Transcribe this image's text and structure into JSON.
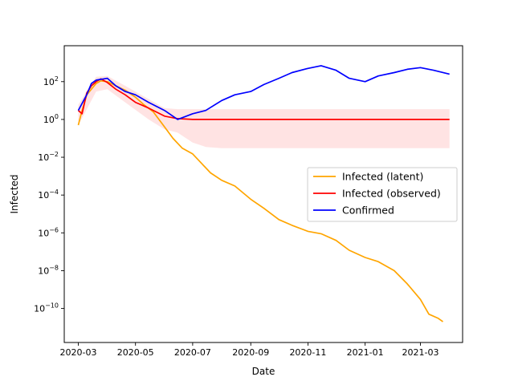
{
  "chart_data": {
    "type": "line",
    "title": "",
    "xlabel": "Date",
    "ylabel": "Infected",
    "yscale": "log",
    "xlim": [
      "2020-02-15",
      "2021-04-15"
    ],
    "ylim_exponent": [
      -11.8,
      3.9
    ],
    "x_ticks": [
      "2020-03",
      "2020-05",
      "2020-07",
      "2020-09",
      "2020-11",
      "2021-01",
      "2021-03"
    ],
    "y_ticks_exponent": [
      2,
      0,
      -2,
      -4,
      -6,
      -8,
      -10
    ],
    "grid": false,
    "legend": {
      "position": "center-right",
      "entries": [
        "Infected (latent)",
        "Infected (observed)",
        "Confirmed"
      ]
    },
    "colors": {
      "latent": "#ffa500",
      "observed": "#ff0000",
      "confirmed": "#0000ff",
      "band": "#ffe0e0"
    },
    "series": [
      {
        "name": "Infected (latent)",
        "color": "#ffa500",
        "points": [
          [
            "2020-03-01",
            0.5
          ],
          [
            "2020-03-05",
            3
          ],
          [
            "2020-03-10",
            20
          ],
          [
            "2020-03-15",
            40
          ],
          [
            "2020-03-20",
            80
          ],
          [
            "2020-03-25",
            110
          ],
          [
            "2020-04-01",
            100
          ],
          [
            "2020-04-10",
            60
          ],
          [
            "2020-04-20",
            35
          ],
          [
            "2020-05-01",
            15
          ],
          [
            "2020-05-10",
            6
          ],
          [
            "2020-05-20",
            2.5
          ],
          [
            "2020-06-01",
            0.4
          ],
          [
            "2020-06-10",
            0.1
          ],
          [
            "2020-06-20",
            0.03
          ],
          [
            "2020-07-01",
            0.015
          ],
          [
            "2020-07-10",
            0.005
          ],
          [
            "2020-07-20",
            0.0015
          ],
          [
            "2020-08-01",
            0.0006
          ],
          [
            "2020-08-15",
            0.0003
          ],
          [
            "2020-09-01",
            6e-05
          ],
          [
            "2020-09-15",
            2e-05
          ],
          [
            "2020-10-01",
            5e-06
          ],
          [
            "2020-10-15",
            2.5e-06
          ],
          [
            "2020-11-01",
            1.2e-06
          ],
          [
            "2020-11-15",
            9e-07
          ],
          [
            "2020-12-01",
            4e-07
          ],
          [
            "2020-12-15",
            1.2e-07
          ],
          [
            "2021-01-01",
            5e-08
          ],
          [
            "2021-01-15",
            3e-08
          ],
          [
            "2021-02-01",
            1e-08
          ],
          [
            "2021-02-15",
            2e-09
          ],
          [
            "2021-03-01",
            3e-10
          ],
          [
            "2021-03-10",
            5e-11
          ],
          [
            "2021-03-20",
            3e-11
          ],
          [
            "2021-03-25",
            2e-11
          ]
        ]
      },
      {
        "name": "Infected (observed)",
        "color": "#ff0000",
        "points": [
          [
            "2020-03-01",
            3
          ],
          [
            "2020-03-05",
            2
          ],
          [
            "2020-03-10",
            25
          ],
          [
            "2020-03-15",
            60
          ],
          [
            "2020-03-20",
            100
          ],
          [
            "2020-03-25",
            140
          ],
          [
            "2020-04-01",
            90
          ],
          [
            "2020-04-10",
            40
          ],
          [
            "2020-04-20",
            20
          ],
          [
            "2020-05-01",
            8
          ],
          [
            "2020-05-15",
            4
          ],
          [
            "2020-06-01",
            1.5
          ],
          [
            "2020-06-15",
            1.1
          ],
          [
            "2020-07-01",
            1.0
          ],
          [
            "2020-09-01",
            1.0
          ],
          [
            "2020-11-01",
            1.0
          ],
          [
            "2021-01-01",
            1.0
          ],
          [
            "2021-04-01",
            1.0
          ]
        ]
      },
      {
        "name": "Confirmed",
        "color": "#0000ff",
        "points": [
          [
            "2020-03-01",
            3
          ],
          [
            "2020-03-10",
            20
          ],
          [
            "2020-03-15",
            80
          ],
          [
            "2020-03-20",
            120
          ],
          [
            "2020-04-01",
            150
          ],
          [
            "2020-04-10",
            60
          ],
          [
            "2020-04-20",
            30
          ],
          [
            "2020-05-01",
            20
          ],
          [
            "2020-05-15",
            8
          ],
          [
            "2020-06-01",
            3
          ],
          [
            "2020-06-15",
            1
          ],
          [
            "2020-07-01",
            2
          ],
          [
            "2020-07-15",
            3
          ],
          [
            "2020-08-01",
            10
          ],
          [
            "2020-08-15",
            20
          ],
          [
            "2020-09-01",
            30
          ],
          [
            "2020-09-15",
            70
          ],
          [
            "2020-10-01",
            150
          ],
          [
            "2020-10-15",
            300
          ],
          [
            "2020-11-01",
            500
          ],
          [
            "2020-11-15",
            700
          ],
          [
            "2020-12-01",
            400
          ],
          [
            "2020-12-15",
            150
          ],
          [
            "2021-01-01",
            100
          ],
          [
            "2021-01-15",
            200
          ],
          [
            "2021-02-01",
            300
          ],
          [
            "2021-02-15",
            450
          ],
          [
            "2021-03-01",
            550
          ],
          [
            "2021-03-15",
            400
          ],
          [
            "2021-04-01",
            250
          ]
        ]
      }
    ],
    "observed_band": {
      "lower": [
        [
          "2020-03-01",
          0.5
        ],
        [
          "2020-03-20",
          30
        ],
        [
          "2020-04-01",
          40
        ],
        [
          "2020-04-20",
          8
        ],
        [
          "2020-05-15",
          1
        ],
        [
          "2020-06-01",
          0.3
        ],
        [
          "2020-06-15",
          0.2
        ],
        [
          "2020-07-01",
          0.06
        ],
        [
          "2020-07-15",
          0.035
        ],
        [
          "2020-08-01",
          0.03
        ],
        [
          "2021-04-01",
          0.03
        ]
      ],
      "upper": [
        [
          "2020-03-01",
          6
        ],
        [
          "2020-03-20",
          180
        ],
        [
          "2020-04-01",
          200
        ],
        [
          "2020-04-20",
          60
        ],
        [
          "2020-05-15",
          12
        ],
        [
          "2020-06-01",
          4
        ],
        [
          "2020-06-15",
          3.5
        ],
        [
          "2021-04-01",
          3.5
        ]
      ]
    }
  }
}
